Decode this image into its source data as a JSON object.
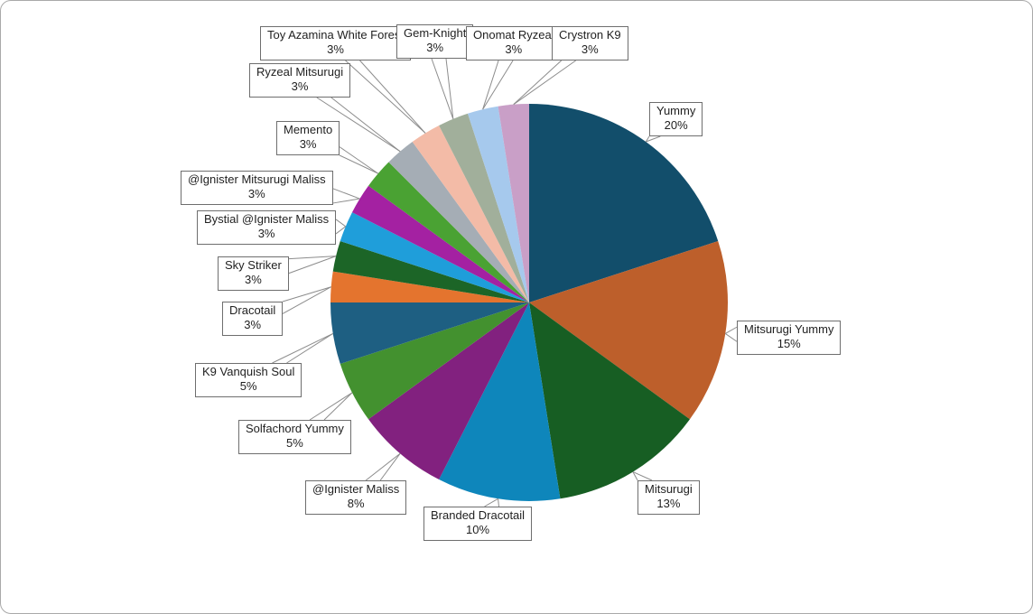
{
  "chart_data": {
    "type": "pie",
    "title": "",
    "legend": "none",
    "label_style": "callout-boxes-with-name-and-percent",
    "start_angle_deg": 0,
    "direction": "clockwise",
    "slices": [
      {
        "label": "Yummy",
        "pct_label": "20%",
        "value": 20,
        "fraction": 0.2,
        "color": "#124E6B"
      },
      {
        "label": "Mitsurugi Yummy",
        "pct_label": "15%",
        "value": 15,
        "fraction": 0.15,
        "color": "#BD5F2B"
      },
      {
        "label": "Mitsurugi",
        "pct_label": "13%",
        "value": 13,
        "fraction": 0.125,
        "color": "#175E23"
      },
      {
        "label": "Branded Dracotail",
        "pct_label": "10%",
        "value": 10,
        "fraction": 0.1,
        "color": "#0E86BB"
      },
      {
        "label": "@Ignister Maliss",
        "pct_label": "8%",
        "value": 8,
        "fraction": 0.075,
        "color": "#82217F"
      },
      {
        "label": "Solfachord Yummy",
        "pct_label": "5%",
        "value": 5,
        "fraction": 0.05,
        "color": "#43912F"
      },
      {
        "label": "K9 Vanquish Soul",
        "pct_label": "5%",
        "value": 5,
        "fraction": 0.05,
        "color": "#1E5F82"
      },
      {
        "label": "Dracotail",
        "pct_label": "3%",
        "value": 3,
        "fraction": 0.025,
        "color": "#E4742E"
      },
      {
        "label": "Sky Striker",
        "pct_label": "3%",
        "value": 3,
        "fraction": 0.025,
        "color": "#1C6527"
      },
      {
        "label": "Bystial @Ignister Maliss",
        "pct_label": "3%",
        "value": 3,
        "fraction": 0.025,
        "color": "#1F9EDA"
      },
      {
        "label": "@Ignister Mitsurugi Maliss",
        "pct_label": "3%",
        "value": 3,
        "fraction": 0.025,
        "color": "#A421A2"
      },
      {
        "label": "Memento",
        "pct_label": "3%",
        "value": 3,
        "fraction": 0.025,
        "color": "#4AA233"
      },
      {
        "label": "Ryzeal Mitsurugi",
        "pct_label": "3%",
        "value": 3,
        "fraction": 0.025,
        "color": "#A5ADB5"
      },
      {
        "label": "Toy Azamina White Forest",
        "pct_label": "3%",
        "value": 3,
        "fraction": 0.025,
        "color": "#F3BBA7"
      },
      {
        "label": "Gem-Knight",
        "pct_label": "3%",
        "value": 3,
        "fraction": 0.025,
        "color": "#A1AF9B"
      },
      {
        "label": "Onomat Ryzeal",
        "pct_label": "3%",
        "value": 3,
        "fraction": 0.025,
        "color": "#C99FC7"
      }
    ],
    "note_last_slice_fix": "Onomat Ryzeal is #A6C9ED and Crystron K9 is #C99FC7 — corrected in slices_extra",
    "slices_extra": [
      {
        "label": "Onomat Ryzeal",
        "pct_label": "3%",
        "value": 3,
        "fraction": 0.025,
        "color": "#A6C9ED"
      },
      {
        "label": "Crystron K9",
        "pct_label": "3%",
        "value": 3,
        "fraction": 0.025,
        "color": "#C99FC7"
      }
    ],
    "callout_line_color": "#8c8c8c",
    "callout_border_color": "#6e6e6e"
  }
}
